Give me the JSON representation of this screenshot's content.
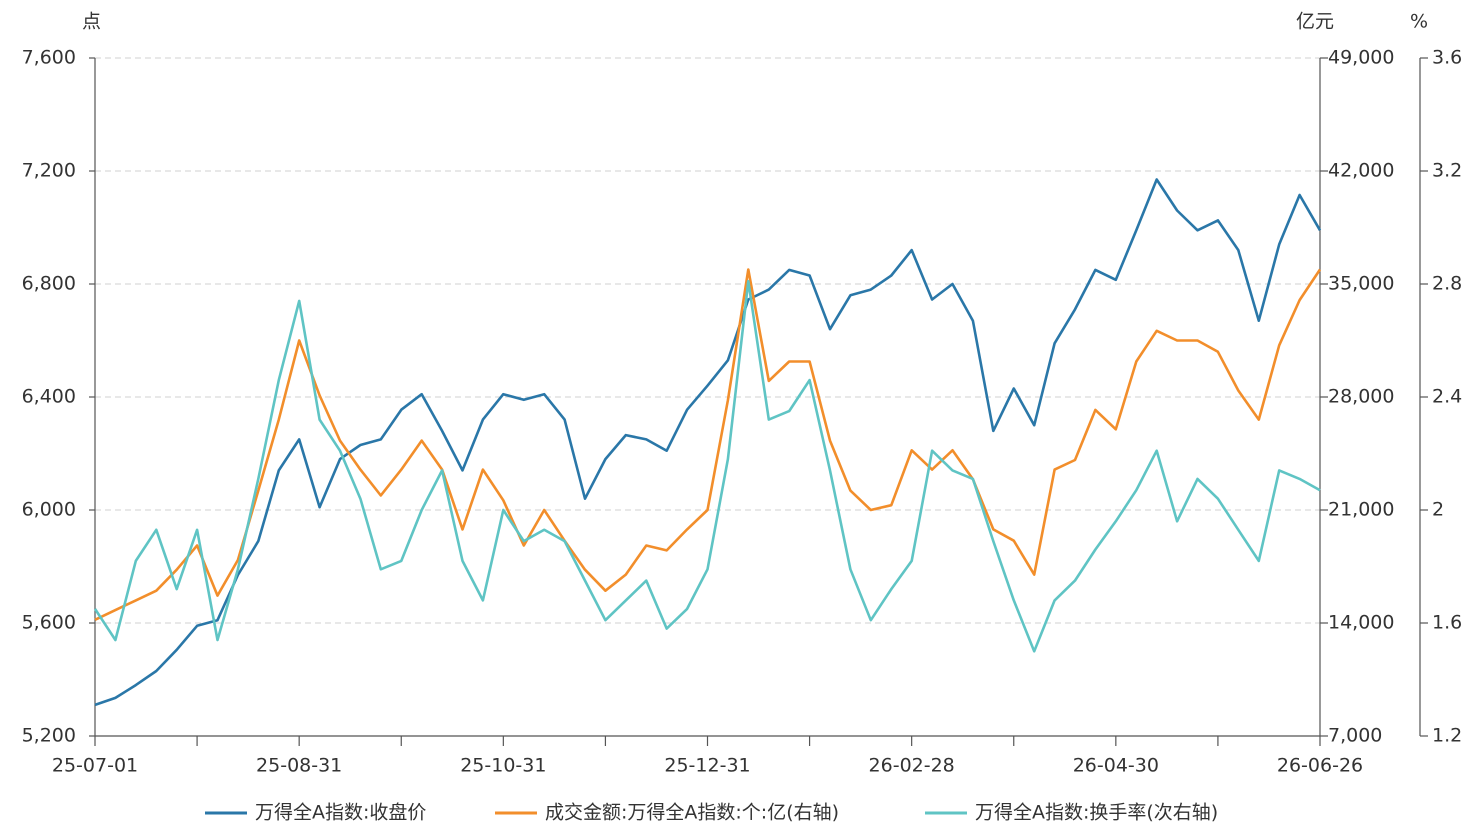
{
  "chart_data": {
    "type": "line",
    "y_unit": "点",
    "y2_unit": "亿元",
    "y3_unit": "%",
    "categories": [
      "25-07-01",
      null,
      null,
      null,
      null,
      null,
      null,
      null,
      null,
      null,
      "25-08-31",
      null,
      null,
      null,
      null,
      null,
      null,
      null,
      null,
      null,
      "25-10-31",
      null,
      null,
      null,
      null,
      null,
      null,
      null,
      null,
      null,
      "25-12-31",
      null,
      null,
      null,
      null,
      null,
      null,
      null,
      null,
      null,
      "26-02-28",
      null,
      null,
      null,
      null,
      null,
      null,
      null,
      null,
      null,
      "26-04-30",
      null,
      null,
      null,
      null,
      null,
      null,
      null,
      null,
      null,
      "26-06-26"
    ],
    "series": [
      {
        "name": "万得全A指数:收盘价",
        "color": "#2a77a8",
        "axis": "y",
        "values": [
          5310,
          5335,
          5380,
          5430,
          5505,
          5590,
          5610,
          5770,
          5890,
          6140,
          6250,
          6010,
          6180,
          6230,
          6250,
          6355,
          6410,
          6280,
          6140,
          6320,
          6410,
          6390,
          6410,
          6320,
          6040,
          6180,
          6265,
          6250,
          6210,
          6355,
          6440,
          6530,
          6745,
          6780,
          6850,
          6830,
          6640,
          6760,
          6780,
          6830,
          6920,
          6745,
          6800,
          6670,
          6280,
          6430,
          6300,
          6590,
          6710,
          6850,
          6815,
          6990,
          7170,
          7060,
          6990,
          7025,
          6920,
          6670,
          6940,
          7115,
          6990
        ]
      },
      {
        "name": "成交金额:万得全A指数:个:亿(右轴)",
        "color": "#f28e2b",
        "axis": "y2",
        "values": [
          14200,
          14800,
          15400,
          16000,
          17300,
          18800,
          15700,
          17900,
          22200,
          26600,
          31500,
          28100,
          25300,
          23500,
          21900,
          23500,
          25300,
          23500,
          19800,
          23500,
          21600,
          18800,
          21000,
          19100,
          17300,
          16000,
          17000,
          18800,
          18500,
          19800,
          21000,
          27800,
          35900,
          29000,
          30200,
          30200,
          25300,
          22200,
          21000,
          21300,
          24700,
          23500,
          24700,
          22900,
          19800,
          19100,
          17000,
          23500,
          24100,
          27200,
          26000,
          30200,
          32100,
          31500,
          31500,
          30800,
          28400,
          26600,
          31200,
          34000,
          35900
        ]
      },
      {
        "name": "万得全A指数:换手率(次右轴)",
        "color": "#5fc4c4",
        "axis": "y3",
        "values": [
          1.65,
          1.54,
          1.82,
          1.93,
          1.72,
          1.93,
          1.54,
          1.79,
          2.11,
          2.46,
          2.74,
          2.32,
          2.21,
          2.04,
          1.79,
          1.82,
          2.0,
          2.14,
          1.82,
          1.68,
          2.0,
          1.89,
          1.93,
          1.89,
          1.75,
          1.61,
          1.68,
          1.75,
          1.58,
          1.65,
          1.79,
          2.18,
          2.81,
          2.32,
          2.35,
          2.46,
          2.14,
          1.79,
          1.61,
          1.72,
          1.82,
          2.21,
          2.14,
          2.11,
          1.89,
          1.68,
          1.5,
          1.68,
          1.75,
          1.86,
          1.96,
          2.07,
          2.21,
          1.96,
          2.11,
          2.04,
          1.93,
          1.82,
          2.14,
          2.11,
          2.07
        ]
      }
    ],
    "ylim": [
      5200,
      7600
    ],
    "yticks": [
      {
        "value": 5200,
        "label": "5,200"
      },
      {
        "value": 5600,
        "label": "5,600"
      },
      {
        "value": 6000,
        "label": "6,000"
      },
      {
        "value": 6400,
        "label": "6,400"
      },
      {
        "value": 6800,
        "label": "6,800"
      },
      {
        "value": 7200,
        "label": "7,200"
      },
      {
        "value": 7600,
        "label": "7,600"
      }
    ],
    "y2lim": [
      7000,
      49000
    ],
    "y2ticks": [
      {
        "value": 7000,
        "label": "7,000"
      },
      {
        "value": 14000,
        "label": "14,000"
      },
      {
        "value": 21000,
        "label": "21,000"
      },
      {
        "value": 28000,
        "label": "28,000"
      },
      {
        "value": 35000,
        "label": "35,000"
      },
      {
        "value": 42000,
        "label": "42,000"
      },
      {
        "value": 49000,
        "label": "49,000"
      }
    ],
    "y3lim": [
      1.2,
      3.6
    ],
    "y3ticks": [
      1.2,
      1.6,
      2,
      2.4,
      2.8,
      3.2,
      3.6
    ],
    "grid": true,
    "legend": "bottom"
  }
}
